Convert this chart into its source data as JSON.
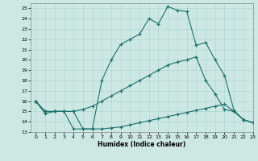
{
  "xlabel": "Humidex (Indice chaleur)",
  "xlim": [
    -0.5,
    23
  ],
  "ylim": [
    13,
    25.5
  ],
  "xticks": [
    0,
    1,
    2,
    3,
    4,
    5,
    6,
    7,
    8,
    9,
    10,
    11,
    12,
    13,
    14,
    15,
    16,
    17,
    18,
    19,
    20,
    21,
    22,
    23
  ],
  "yticks": [
    13,
    14,
    15,
    16,
    17,
    18,
    19,
    20,
    21,
    22,
    23,
    24,
    25
  ],
  "bg_color": "#cde8e4",
  "grid_color": "#b0d8d2",
  "line_color": "#1a7070",
  "line1_x": [
    0,
    1,
    2,
    3,
    4,
    5,
    6,
    7,
    8,
    9,
    10,
    11,
    12,
    13,
    14,
    15,
    16,
    17,
    18,
    19,
    20,
    21,
    22,
    23
  ],
  "line1_y": [
    16,
    14.8,
    15,
    15,
    13.3,
    13.3,
    13.3,
    18,
    20,
    21.5,
    22,
    22.5,
    24,
    23.5,
    25.2,
    24.8,
    24.7,
    21.4,
    21.7,
    20,
    18.5,
    15.1,
    14.2,
    13.9
  ],
  "line2_x": [
    0,
    1,
    2,
    3,
    4,
    5,
    6,
    7,
    8,
    9,
    10,
    11,
    12,
    13,
    14,
    15,
    16,
    17,
    18,
    19,
    20,
    21,
    22,
    23
  ],
  "line2_y": [
    16,
    15,
    15,
    15,
    15,
    15.2,
    15.5,
    16,
    16.5,
    17,
    17.5,
    18,
    18.5,
    19,
    19.5,
    19.8,
    20,
    20.3,
    18,
    16.7,
    15.2,
    15,
    14.2,
    13.9
  ],
  "line3_x": [
    0,
    1,
    2,
    3,
    4,
    5,
    6,
    7,
    8,
    9,
    10,
    11,
    12,
    13,
    14,
    15,
    16,
    17,
    18,
    19,
    20,
    21,
    22,
    23
  ],
  "line3_y": [
    16,
    15,
    15,
    15,
    15,
    13.3,
    13.3,
    13.3,
    13.4,
    13.5,
    13.7,
    13.9,
    14.1,
    14.3,
    14.5,
    14.7,
    14.9,
    15.1,
    15.3,
    15.5,
    15.7,
    15,
    14.2,
    13.9
  ]
}
